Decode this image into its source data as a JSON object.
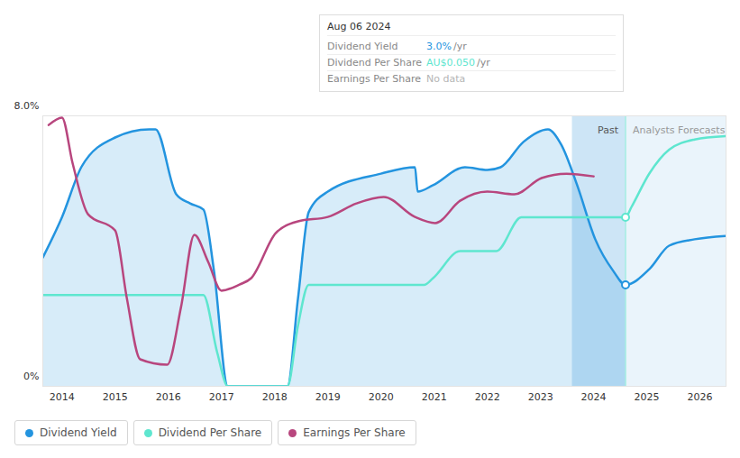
{
  "chart_data": {
    "type": "line",
    "xlim": [
      2013.64,
      2026.49
    ],
    "xticks": [
      2014,
      2015,
      2016,
      2017,
      2018,
      2019,
      2020,
      2021,
      2022,
      2023,
      2024,
      2025,
      2026
    ],
    "ylim": [
      0,
      8
    ],
    "yticks": [
      {
        "value": 0,
        "label": "0%"
      },
      {
        "value": 8,
        "label": "8.0%"
      }
    ],
    "y2lim": [
      0,
      0.08
    ],
    "y2ticks": [],
    "grid": true,
    "legend": "bottom",
    "regions": [
      {
        "label": "Past",
        "x": [
          2023.6,
          2024.6
        ]
      },
      {
        "label": "Analysts Forecasts",
        "x": [
          2024.6,
          2026.49
        ]
      }
    ],
    "tooltip": {
      "title": "Aug 06 2024",
      "rows": [
        {
          "label": "Dividend Yield",
          "value": "3.0%",
          "unit": "/yr",
          "color": "#2394df"
        },
        {
          "label": "Dividend Per Share",
          "value": "AU$0.050",
          "unit": "/yr",
          "color": "#5ee6cf"
        },
        {
          "label": "Earnings Per Share",
          "value": "No data",
          "color": "#b5b5b5"
        }
      ]
    },
    "series": [
      {
        "name": "Dividend Yield",
        "color": "#2394df",
        "type": "area",
        "x": [
          2013.64,
          2014.0,
          2014.37,
          2015.0,
          2015.64,
          2015.76,
          2016.15,
          2016.41,
          2016.66,
          2016.86,
          2017.12,
          2018.24,
          2018.44,
          2018.64,
          2019.0,
          2020.0,
          2020.64,
          2020.69,
          2020.98,
          2021.58,
          2022.0,
          2022.25,
          2022.68,
          2023.14,
          2023.39,
          2023.69,
          2024.03,
          2024.37,
          2024.6,
          2025.05,
          2025.42,
          2025.9,
          2026.49
        ],
        "values": [
          3.81,
          5.0,
          6.5,
          7.36,
          7.6,
          7.6,
          5.68,
          5.41,
          5.23,
          3.41,
          0,
          0,
          2.61,
          5.15,
          5.76,
          6.29,
          6.48,
          5.76,
          5.95,
          6.48,
          6.4,
          6.48,
          7.23,
          7.6,
          7.15,
          5.95,
          4.35,
          3.41,
          3.0,
          3.47,
          4.16,
          4.35,
          4.45
        ]
      },
      {
        "name": "Dividend Per Share",
        "color": "#5ee6cf",
        "axis": "y2",
        "x": [
          2013.64,
          2016.66,
          2016.92,
          2017.12,
          2018.24,
          2018.44,
          2018.64,
          2020.81,
          2020.98,
          2021.49,
          2022.17,
          2022.64,
          2024.6,
          2024.71,
          2025.05,
          2025.42,
          2025.9,
          2026.49
        ],
        "values": [
          0.027,
          0.027,
          0.01,
          0,
          0,
          0.018,
          0.03,
          0.03,
          0.032,
          0.04,
          0.04,
          0.05,
          0.05,
          0.053,
          0.063,
          0.07,
          0.073,
          0.074
        ]
      },
      {
        "name": "Earnings Per Share",
        "color": "#b8467e",
        "axis": "y2",
        "x": [
          2013.75,
          2014.0,
          2014.2,
          2014.49,
          2015.0,
          2015.22,
          2015.47,
          2015.98,
          2016.24,
          2016.49,
          2016.75,
          2017.0,
          2017.34,
          2017.56,
          2018.02,
          2018.44,
          2019.0,
          2019.54,
          2020.05,
          2020.64,
          2021.02,
          2021.49,
          2022.0,
          2022.51,
          2023.02,
          2023.49,
          2024.0
        ],
        "values": [
          0.0773,
          0.0795,
          0.066,
          0.0509,
          0.0461,
          0.0261,
          0.008,
          0.0064,
          0.0235,
          0.0448,
          0.0368,
          0.0283,
          0.0301,
          0.032,
          0.0453,
          0.0488,
          0.0501,
          0.0541,
          0.056,
          0.0501,
          0.0483,
          0.0549,
          0.0576,
          0.0568,
          0.0616,
          0.0629,
          0.0621
        ]
      }
    ]
  }
}
